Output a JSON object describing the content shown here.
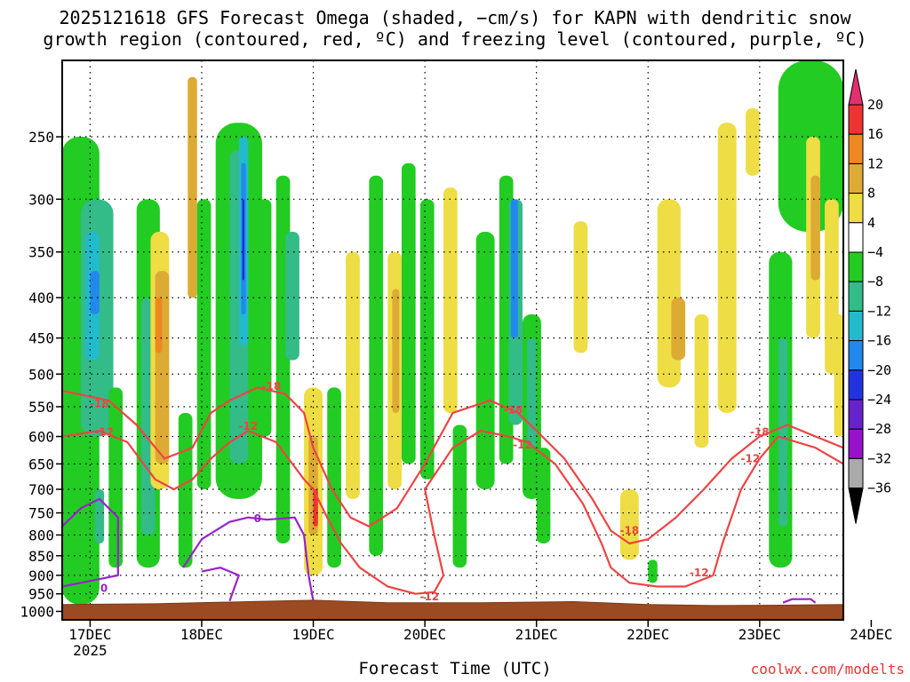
{
  "title_line1": "2025121618 GFS Forecast Omega (shaded, −cm/s) for KAPN with dendritic snow",
  "title_line2": "growth region (contoured, red, ºC) and freezing level (contoured, purple, ºC)",
  "xlabel": "Forecast Time (UTC)",
  "credit": "coolwx.com/modelts",
  "chart_data": {
    "type": "heatmap",
    "y_axis": {
      "scale": "log-pressure",
      "range_hPa": [
        1025,
        200
      ],
      "ticks": [
        250,
        300,
        350,
        400,
        450,
        500,
        550,
        600,
        650,
        700,
        750,
        800,
        850,
        900,
        950,
        1000
      ],
      "grid": true
    },
    "x_axis": {
      "range_hours_since_start": [
        0,
        168
      ],
      "ticks": [
        {
          "label": "17DEC",
          "sublabel": "2025",
          "hour": 6
        },
        {
          "label": "18DEC",
          "sublabel": "",
          "hour": 30
        },
        {
          "label": "19DEC",
          "sublabel": "",
          "hour": 54
        },
        {
          "label": "20DEC",
          "sublabel": "",
          "hour": 78
        },
        {
          "label": "21DEC",
          "sublabel": "",
          "hour": 102
        },
        {
          "label": "22DEC",
          "sublabel": "",
          "hour": 126
        },
        {
          "label": "23DEC",
          "sublabel": "",
          "hour": 150
        },
        {
          "label": "24DEC",
          "sublabel": "",
          "hour": 174
        }
      ]
    },
    "colorbar": {
      "levels": [
        "20",
        "16",
        "12",
        "8",
        "4",
        "−4",
        "−8",
        "−12",
        "−16",
        "−20",
        "−24",
        "−28",
        "−32",
        "−36"
      ],
      "colors_top_to_bottom": [
        "#e03070",
        "#ee3333",
        "#ee8822",
        "#ddaa33",
        "#eedd44",
        "#ffffff",
        "#22cc22",
        "#33bb88",
        "#22bbcc",
        "#2288ee",
        "#2233dd",
        "#6622cc",
        "#9911cc",
        "#aaaaaa",
        "#000000"
      ]
    },
    "contours": {
      "dgz_color": "#ee4444",
      "freezing_color": "#9922cc",
      "labels": [
        {
          "text": "-18",
          "hour": 8,
          "p": 545
        },
        {
          "text": "-12",
          "hour": 9,
          "p": 592
        },
        {
          "text": "-18",
          "hour": 45,
          "p": 518
        },
        {
          "text": "-12",
          "hour": 40,
          "p": 582
        },
        {
          "text": "0",
          "hour": 42,
          "p": 763
        },
        {
          "text": "0",
          "hour": 9,
          "p": 935
        },
        {
          "text": "-12",
          "hour": 79,
          "p": 958
        },
        {
          "text": "-18",
          "hour": 97,
          "p": 555
        },
        {
          "text": "-12",
          "hour": 99,
          "p": 615
        },
        {
          "text": "-18",
          "hour": 122,
          "p": 790
        },
        {
          "text": "-12",
          "hour": 137,
          "p": 893
        },
        {
          "text": "-18",
          "hour": 150,
          "p": 592
        },
        {
          "text": "-12",
          "hour": 148,
          "p": 640
        }
      ]
    },
    "omega_cells": [
      [
        0,
        8,
        980,
        250,
        "#22cc22"
      ],
      [
        4,
        7,
        600,
        300,
        "#33bb88"
      ],
      [
        5,
        3,
        480,
        330,
        "#22bbcc"
      ],
      [
        6,
        2,
        420,
        370,
        "#2288ee"
      ],
      [
        1,
        3,
        950,
        700,
        "#22cc22"
      ],
      [
        10,
        3,
        880,
        520,
        "#22cc22"
      ],
      [
        7,
        2,
        820,
        700,
        "#33bb88"
      ],
      [
        16,
        5,
        880,
        300,
        "#22cc22"
      ],
      [
        17,
        3,
        800,
        400,
        "#33bb88"
      ],
      [
        19,
        4,
        700,
        330,
        "#eedd44"
      ],
      [
        20,
        3,
        650,
        370,
        "#ddaa33"
      ],
      [
        20,
        1.5,
        470,
        400,
        "#ee8822"
      ],
      [
        25,
        3,
        880,
        560,
        "#22cc22"
      ],
      [
        27,
        2,
        400,
        210,
        "#ddaa33"
      ],
      [
        29,
        3,
        700,
        300,
        "#22cc22"
      ],
      [
        33,
        10,
        720,
        240,
        "#22cc22"
      ],
      [
        36,
        4,
        650,
        260,
        "#33bb88"
      ],
      [
        38,
        2,
        460,
        250,
        "#22bbcc"
      ],
      [
        38.5,
        1,
        420,
        270,
        "#2288ee"
      ],
      [
        38.7,
        0.5,
        380,
        300,
        "#2233dd"
      ],
      [
        42,
        3,
        600,
        300,
        "#22cc22"
      ],
      [
        46,
        3,
        820,
        280,
        "#22cc22"
      ],
      [
        48,
        3,
        480,
        330,
        "#33bb88"
      ],
      [
        52,
        4,
        900,
        520,
        "#eedd44"
      ],
      [
        53,
        2,
        800,
        600,
        "#ddaa33"
      ],
      [
        54,
        1,
        780,
        700,
        "#ee3333"
      ],
      [
        57,
        3,
        880,
        520,
        "#22cc22"
      ],
      [
        61,
        3,
        720,
        350,
        "#eedd44"
      ],
      [
        66,
        3,
        850,
        280,
        "#22cc22"
      ],
      [
        70,
        3,
        700,
        350,
        "#eedd44"
      ],
      [
        71,
        1.5,
        560,
        390,
        "#ddaa33"
      ],
      [
        73,
        3,
        650,
        270,
        "#22cc22"
      ],
      [
        77,
        3,
        680,
        300,
        "#22cc22"
      ],
      [
        82,
        3,
        560,
        290,
        "#eedd44"
      ],
      [
        84,
        3,
        880,
        580,
        "#22cc22"
      ],
      [
        89,
        4,
        700,
        330,
        "#22cc22"
      ],
      [
        94,
        3,
        650,
        280,
        "#22cc22"
      ],
      [
        96,
        3,
        580,
        300,
        "#33bb88"
      ],
      [
        96.5,
        1.5,
        450,
        300,
        "#2288ee"
      ],
      [
        99,
        4,
        720,
        420,
        "#22cc22"
      ],
      [
        100,
        2,
        620,
        450,
        "#33bb88"
      ],
      [
        102,
        3,
        820,
        620,
        "#22cc22"
      ],
      [
        110,
        3,
        470,
        320,
        "#eedd44"
      ],
      [
        120,
        4,
        860,
        700,
        "#eedd44"
      ],
      [
        126,
        2,
        920,
        860,
        "#22cc22"
      ],
      [
        128,
        5,
        520,
        300,
        "#eedd44"
      ],
      [
        131,
        3,
        480,
        400,
        "#ddaa33"
      ],
      [
        136,
        3,
        620,
        420,
        "#eedd44"
      ],
      [
        141,
        4,
        560,
        240,
        "#eedd44"
      ],
      [
        147,
        3,
        280,
        230,
        "#eedd44"
      ],
      [
        152,
        5,
        880,
        350,
        "#22cc22"
      ],
      [
        154,
        2,
        780,
        450,
        "#33bb88"
      ],
      [
        154,
        14,
        330,
        200,
        "#22cc22"
      ],
      [
        160,
        3,
        450,
        250,
        "#eedd44"
      ],
      [
        161,
        2,
        380,
        280,
        "#ddaa33"
      ],
      [
        164,
        3,
        500,
        300,
        "#eedd44"
      ],
      [
        166,
        2,
        600,
        420,
        "#eedd44"
      ]
    ],
    "dgz_curves": [
      [
        [
          0,
          600
        ],
        [
          8,
          590
        ],
        [
          14,
          610
        ],
        [
          20,
          680
        ],
        [
          24,
          700
        ],
        [
          28,
          680
        ],
        [
          32,
          640
        ],
        [
          36,
          610
        ],
        [
          40,
          590
        ],
        [
          46,
          610
        ],
        [
          52,
          680
        ],
        [
          54,
          700
        ],
        [
          57,
          760
        ],
        [
          60,
          820
        ],
        [
          64,
          880
        ],
        [
          70,
          930
        ],
        [
          76,
          950
        ],
        [
          80,
          945
        ],
        [
          82,
          900
        ],
        [
          80,
          800
        ],
        [
          78,
          700
        ],
        [
          84,
          620
        ],
        [
          90,
          590
        ],
        [
          96,
          600
        ],
        [
          100,
          610
        ],
        [
          106,
          650
        ],
        [
          112,
          730
        ],
        [
          116,
          820
        ],
        [
          118,
          880
        ],
        [
          122,
          920
        ],
        [
          128,
          930
        ],
        [
          134,
          930
        ],
        [
          140,
          900
        ],
        [
          142,
          820
        ],
        [
          146,
          700
        ],
        [
          150,
          640
        ],
        [
          154,
          600
        ],
        [
          162,
          620
        ],
        [
          168,
          650
        ]
      ],
      [
        [
          0,
          525
        ],
        [
          10,
          540
        ],
        [
          16,
          580
        ],
        [
          22,
          640
        ],
        [
          28,
          620
        ],
        [
          32,
          560
        ],
        [
          36,
          540
        ],
        [
          42,
          520
        ],
        [
          48,
          530
        ],
        [
          52,
          560
        ],
        [
          54,
          620
        ],
        [
          58,
          700
        ],
        [
          62,
          760
        ],
        [
          66,
          780
        ],
        [
          72,
          740
        ],
        [
          78,
          650
        ],
        [
          84,
          560
        ],
        [
          92,
          540
        ],
        [
          98,
          560
        ],
        [
          102,
          590
        ],
        [
          108,
          640
        ],
        [
          114,
          720
        ],
        [
          118,
          790
        ],
        [
          122,
          820
        ],
        [
          126,
          810
        ],
        [
          132,
          760
        ],
        [
          138,
          700
        ],
        [
          144,
          640
        ],
        [
          150,
          600
        ],
        [
          156,
          580
        ],
        [
          162,
          600
        ],
        [
          168,
          620
        ]
      ]
    ],
    "freezing_curves": [
      [
        [
          0,
          780
        ],
        [
          4,
          740
        ],
        [
          8,
          720
        ],
        [
          12,
          760
        ],
        [
          12,
          900
        ],
        [
          0,
          930
        ]
      ],
      [
        [
          26,
          880
        ],
        [
          30,
          810
        ],
        [
          36,
          770
        ],
        [
          40,
          760
        ],
        [
          44,
          765
        ],
        [
          50,
          760
        ],
        [
          52,
          800
        ],
        [
          53,
          900
        ],
        [
          54,
          970
        ]
      ],
      [
        [
          36,
          970
        ],
        [
          38,
          900
        ],
        [
          34,
          880
        ],
        [
          30,
          890
        ]
      ],
      [
        [
          155,
          975
        ],
        [
          157,
          965
        ],
        [
          161,
          965
        ],
        [
          162,
          975
        ]
      ]
    ],
    "ground": [
      [
        0,
        980
      ],
      [
        20,
        978
      ],
      [
        40,
        972
      ],
      [
        54,
        968
      ],
      [
        70,
        975
      ],
      [
        90,
        975
      ],
      [
        110,
        972
      ],
      [
        126,
        980
      ],
      [
        140,
        983
      ],
      [
        155,
        982
      ],
      [
        168,
        980
      ]
    ]
  }
}
